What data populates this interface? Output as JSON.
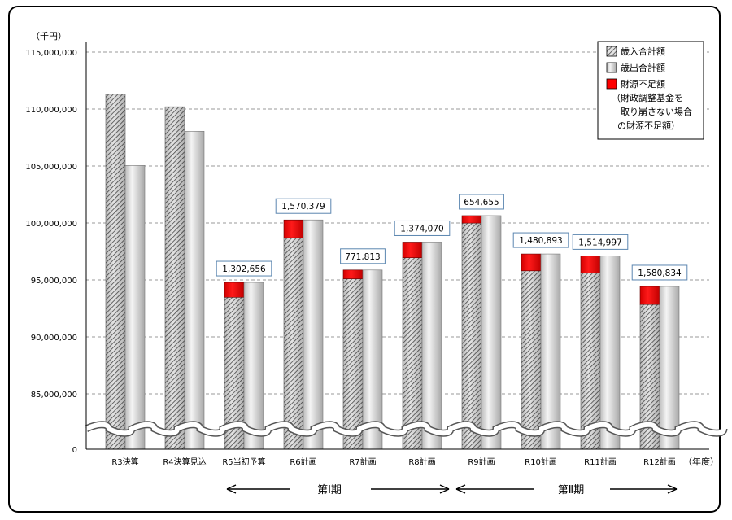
{
  "chart_data": {
    "type": "bar",
    "y_unit": "（千円）",
    "x_unit": "（年度）",
    "axis_break": true,
    "grid": "dashed horizontal",
    "legend_position": "top-right",
    "ylim": [
      80000000,
      115000000
    ],
    "yticks": [
      0,
      85000000,
      90000000,
      95000000,
      100000000,
      105000000,
      110000000,
      115000000
    ],
    "ytick_labels": [
      "0",
      "85,000,000",
      "90,000,000",
      "95,000,000",
      "100,000,000",
      "105,000,000",
      "110,000,000",
      "115,000,000"
    ],
    "categories": [
      "R3決算",
      "R4決算見込",
      "R5当初予算",
      "R6計画",
      "R7計画",
      "R8計画",
      "R9計画",
      "R10計画",
      "R11計画",
      "R12計画"
    ],
    "series": [
      {
        "name": "歳入合計額",
        "values": [
          111300000,
          110200000,
          93480000,
          98700000,
          95100000,
          96950000,
          99990000,
          95800000,
          95600000,
          92850000
        ]
      },
      {
        "name": "歳出合計額",
        "values": [
          105050000,
          108050000,
          94782656,
          100270379,
          95871813,
          98324070,
          100644655,
          97280893,
          97114997,
          94430834
        ]
      },
      {
        "name": "財源不足額",
        "values": [
          null,
          null,
          1302656,
          1570379,
          771813,
          1374070,
          654655,
          1480893,
          1514997,
          1580834
        ]
      }
    ],
    "data_labels": [
      "",
      "",
      "1,302,656",
      "1,570,379",
      "771,813",
      "1,374,070",
      "654,655",
      "1,480,893",
      "1,514,997",
      "1,580,834"
    ],
    "legend": {
      "items": [
        "歳入合計額",
        "歳出合計額",
        "財源不足額"
      ],
      "note_lines": [
        "（財政調整基金を",
        "取り崩さない場合",
        "の財源不足額）"
      ]
    },
    "periods": [
      {
        "label": "第Ⅰ期",
        "from": "R5当初予算",
        "to": "R8計画"
      },
      {
        "label": "第Ⅱ期",
        "from": "R9計画",
        "to": "R12計画"
      }
    ],
    "colors": {
      "revenue": "#9a9a9a",
      "expenditure": "#d6d6d6",
      "shortfall": "#ff0000",
      "grid": "#999999"
    }
  }
}
